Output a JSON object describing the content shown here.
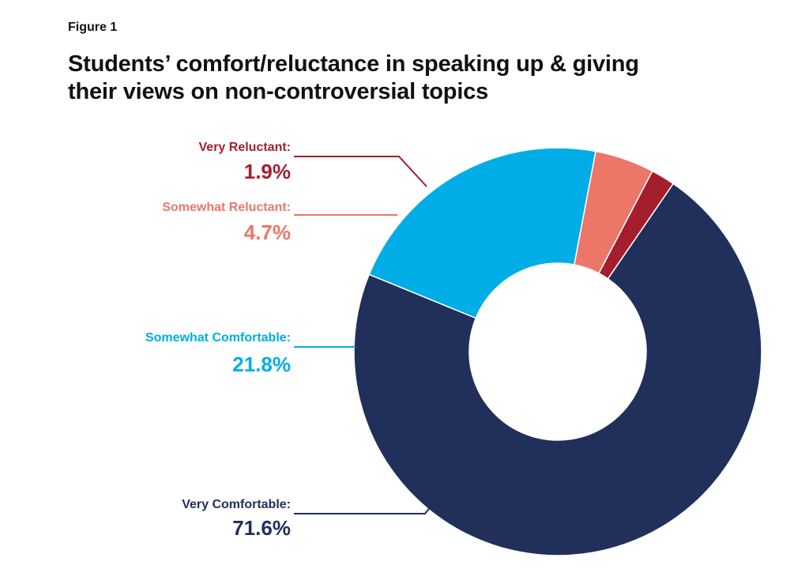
{
  "figure_label": "Figure 1",
  "chart_data": {
    "type": "pie",
    "title": "Students’ comfort/reluctance in speaking up & giving their views on non-controversial topics",
    "donut": true,
    "slices": [
      {
        "label": "Very Comfortable:",
        "value": 71.6,
        "display": "71.6%",
        "color": "#21305a"
      },
      {
        "label": "Somewhat Comfortable:",
        "value": 21.8,
        "display": "21.8%",
        "color": "#00ade6"
      },
      {
        "label": "Somewhat Reluctant:",
        "value": 4.7,
        "display": "4.7%",
        "color": "#ec7668"
      },
      {
        "label": "Very Reluctant:",
        "value": 1.9,
        "display": "1.9%",
        "color": "#a51e2e"
      }
    ]
  }
}
